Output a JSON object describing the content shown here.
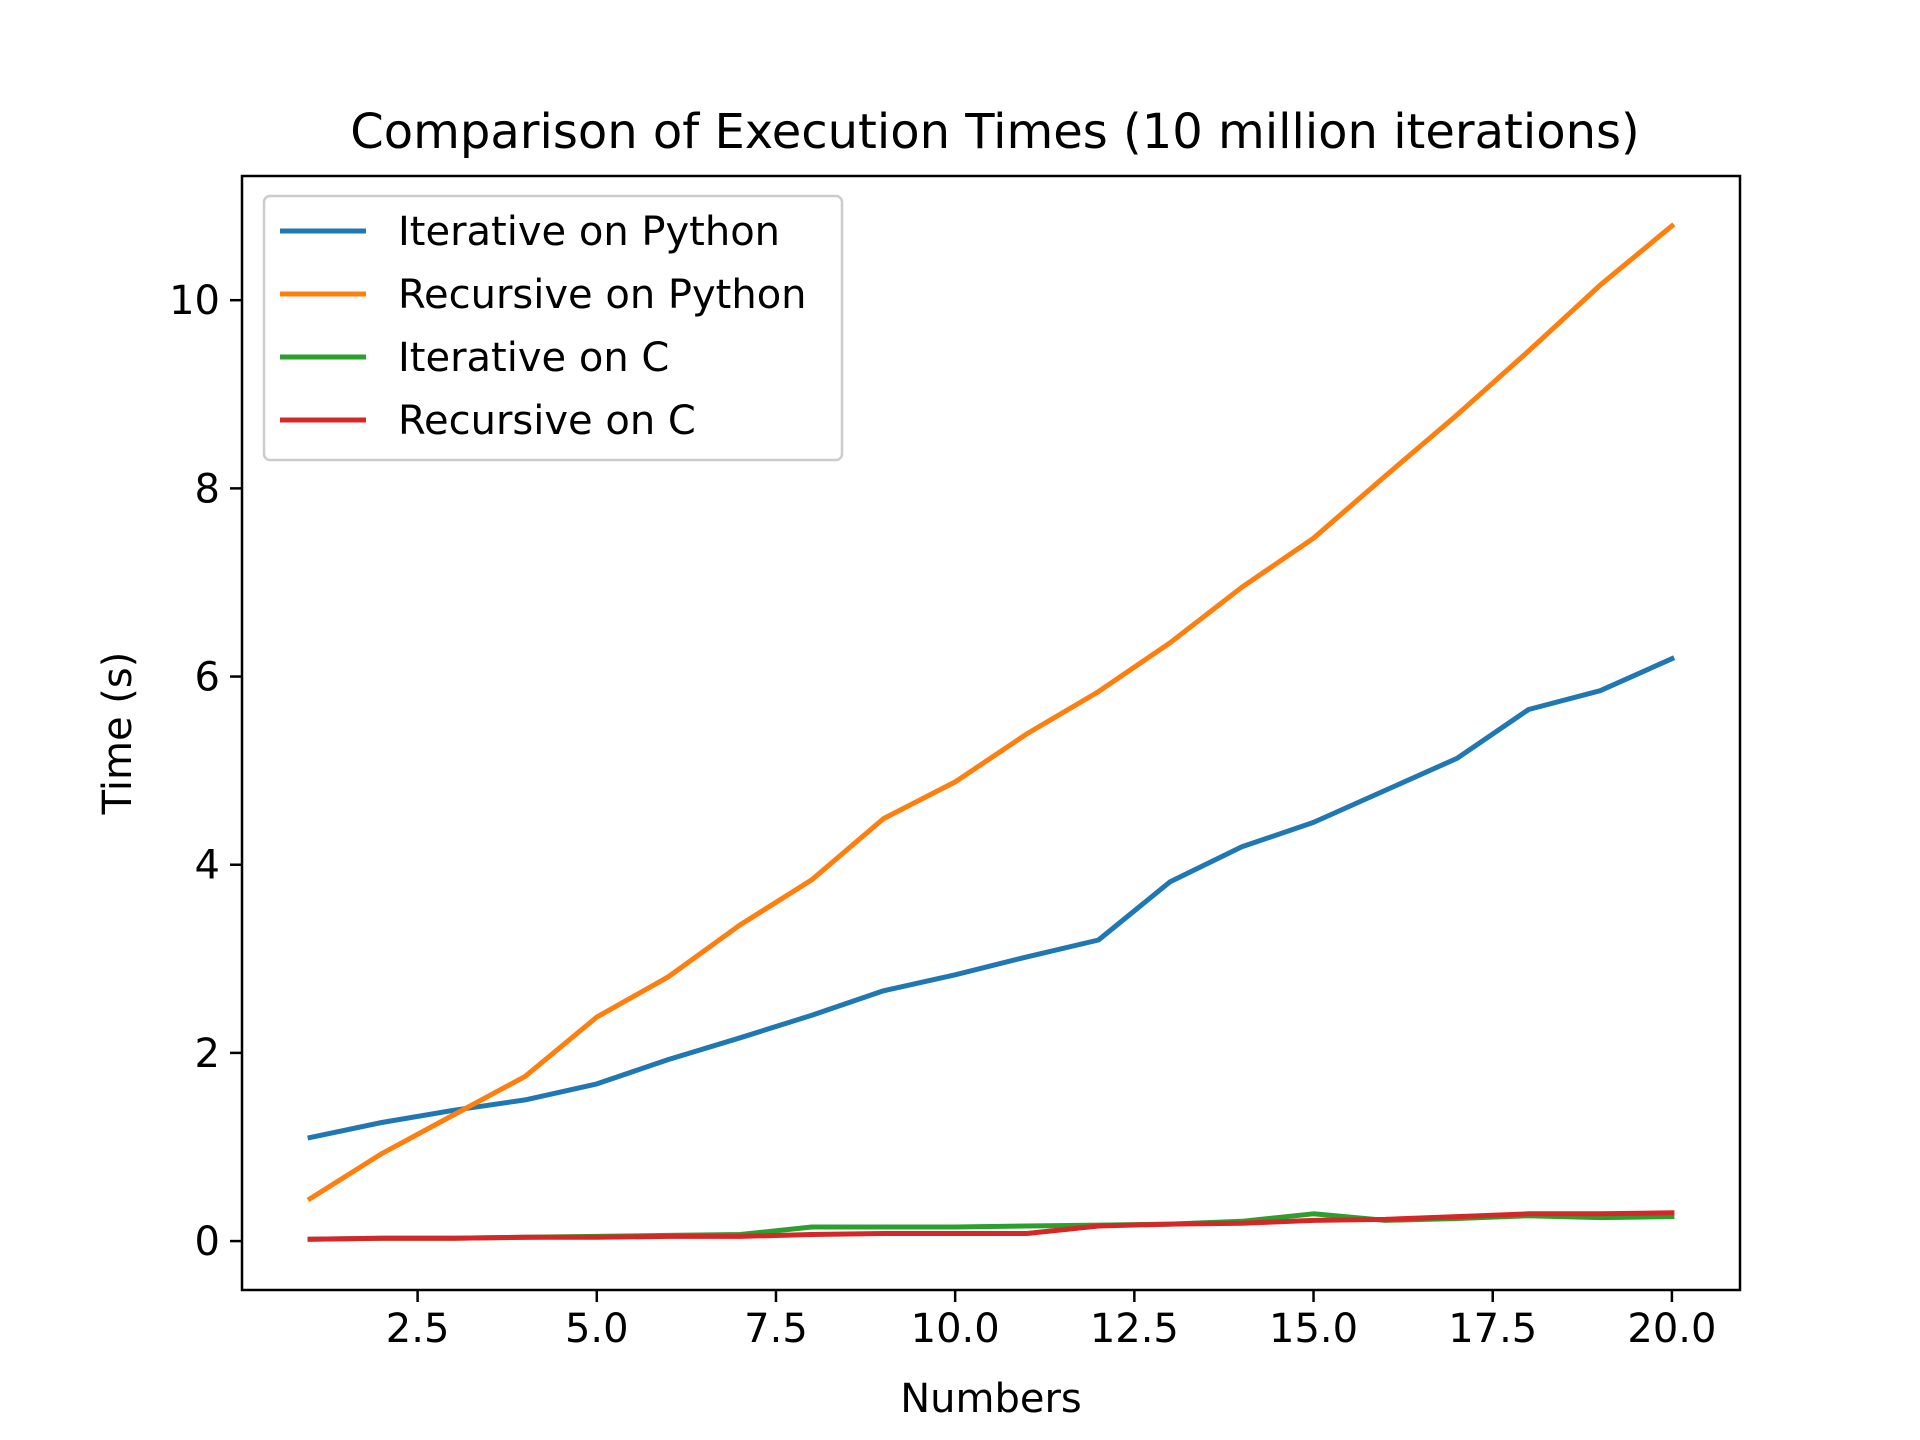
{
  "chart_data": {
    "type": "line",
    "title": "Comparison of Execution Times (10 million iterations)",
    "xlabel": "Numbers",
    "ylabel": "Time (s)",
    "xlim": [
      0.05,
      20.95
    ],
    "ylim": [
      -0.52,
      11.32
    ],
    "xticks": [
      2.5,
      5.0,
      7.5,
      10.0,
      12.5,
      15.0,
      17.5,
      20.0
    ],
    "xtick_labels": [
      "2.5",
      "5.0",
      "7.5",
      "10.0",
      "12.5",
      "15.0",
      "17.5",
      "20.0"
    ],
    "yticks": [
      0,
      2,
      4,
      6,
      8,
      10
    ],
    "ytick_labels": [
      "0",
      "2",
      "4",
      "6",
      "8",
      "10"
    ],
    "grid": false,
    "legend_position": "upper-left",
    "x": [
      1,
      2,
      3,
      4,
      5,
      6,
      7,
      8,
      9,
      10,
      11,
      12,
      13,
      14,
      15,
      16,
      17,
      18,
      19,
      20
    ],
    "series": [
      {
        "name": "Iterative on Python",
        "color": "#1f77b4",
        "values": [
          1.1,
          1.26,
          1.39,
          1.5,
          1.67,
          1.93,
          2.16,
          2.4,
          2.66,
          2.83,
          3.02,
          3.2,
          3.82,
          4.19,
          4.45,
          4.79,
          5.13,
          5.65,
          5.85,
          6.19
        ]
      },
      {
        "name": "Recursive on Python",
        "color": "#ff7f0e",
        "values": [
          0.45,
          0.93,
          1.34,
          1.75,
          2.38,
          2.81,
          3.36,
          3.84,
          4.49,
          4.88,
          5.39,
          5.84,
          6.36,
          6.95,
          7.47,
          8.13,
          8.78,
          9.46,
          10.16,
          10.79
        ]
      },
      {
        "name": "Iterative on C",
        "color": "#2ca02c",
        "values": [
          0.02,
          0.03,
          0.03,
          0.04,
          0.05,
          0.06,
          0.07,
          0.15,
          0.15,
          0.15,
          0.16,
          0.17,
          0.18,
          0.21,
          0.29,
          0.22,
          0.24,
          0.27,
          0.25,
          0.26
        ]
      },
      {
        "name": "Recursive on C",
        "color": "#d62728",
        "values": [
          0.02,
          0.03,
          0.03,
          0.04,
          0.04,
          0.05,
          0.05,
          0.07,
          0.08,
          0.08,
          0.08,
          0.16,
          0.18,
          0.19,
          0.22,
          0.23,
          0.26,
          0.29,
          0.29,
          0.3
        ]
      }
    ]
  }
}
